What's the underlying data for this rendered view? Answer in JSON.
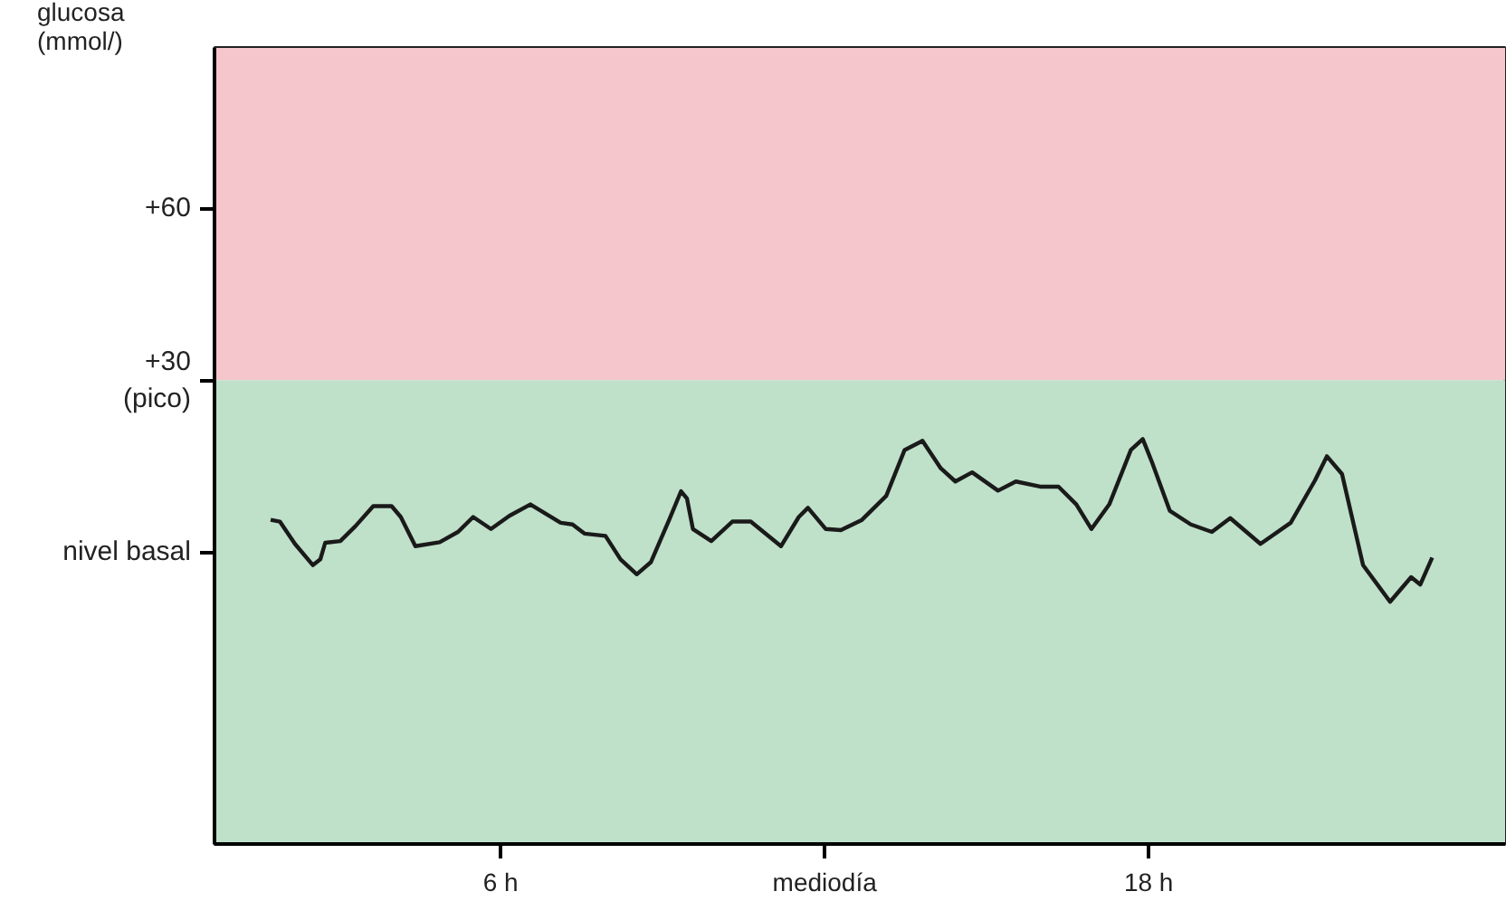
{
  "chart_data": {
    "type": "line",
    "ylabel": "glucosa\n(mmol/)",
    "xlim": [
      0.7,
      24.6
    ],
    "xticks": [
      {
        "value": 6,
        "label": "6 h"
      },
      {
        "value": 12,
        "label": "mediodía"
      },
      {
        "value": 18,
        "label": "18 h"
      }
    ],
    "ylim": [
      -51,
      88
    ],
    "yticks": [
      {
        "value": 0,
        "label": "nivel basal"
      },
      {
        "value": 30,
        "label": "+30\n(pico)"
      },
      {
        "value": 60,
        "label": "+60"
      }
    ],
    "grid": false,
    "marker": "none",
    "line_style": "solid",
    "bands": [
      {
        "axis": "y",
        "from": 30,
        "to": 88,
        "color": "#f5c6cc"
      },
      {
        "axis": "y",
        "from": -51,
        "to": 30,
        "color": "#bfe0c9"
      }
    ],
    "series": [
      {
        "color": "#1a1a1a",
        "x": [
          1.74,
          1.91,
          2.19,
          2.52,
          2.66,
          2.75,
          3.03,
          3.31,
          3.64,
          3.98,
          4.15,
          4.42,
          4.87,
          5.21,
          5.49,
          5.82,
          6.16,
          6.55,
          7.11,
          7.33,
          7.55,
          7.94,
          8.22,
          8.52,
          8.78,
          9.12,
          9.34,
          9.45,
          9.56,
          9.9,
          10.29,
          10.63,
          11.19,
          11.52,
          11.69,
          12.02,
          12.3,
          12.69,
          13.14,
          13.48,
          13.81,
          14.15,
          14.42,
          14.73,
          15.21,
          15.54,
          15.99,
          16.33,
          16.66,
          16.94,
          17.27,
          17.67,
          17.89,
          18.06,
          18.39,
          18.78,
          19.17,
          19.51,
          20.07,
          20.63,
          21.08,
          21.3,
          21.58,
          21.97,
          22.47,
          22.86,
          23.03,
          23.25
        ],
        "values": [
          5.6,
          5.3,
          1.4,
          -2.3,
          -1.3,
          1.6,
          1.9,
          4.5,
          8.0,
          8.0,
          6.1,
          1.0,
          1.7,
          3.5,
          6.1,
          4.0,
          6.3,
          8.3,
          5.1,
          4.8,
          3.2,
          2.8,
          -1.3,
          -3.9,
          -1.8,
          5.6,
          10.6,
          9.3,
          4.0,
          1.9,
          5.3,
          5.3,
          1.0,
          6.1,
          7.7,
          4.0,
          3.8,
          5.6,
          9.8,
          17.8,
          19.4,
          14.6,
          12.3,
          13.9,
          10.7,
          12.3,
          11.4,
          11.4,
          8.3,
          4.0,
          8.3,
          17.8,
          19.7,
          15.7,
          7.2,
          4.8,
          3.5,
          5.9,
          1.4,
          5.1,
          12.5,
          16.7,
          13.6,
          -2.3,
          -8.7,
          -4.4,
          -5.7,
          -1.0
        ]
      }
    ]
  }
}
